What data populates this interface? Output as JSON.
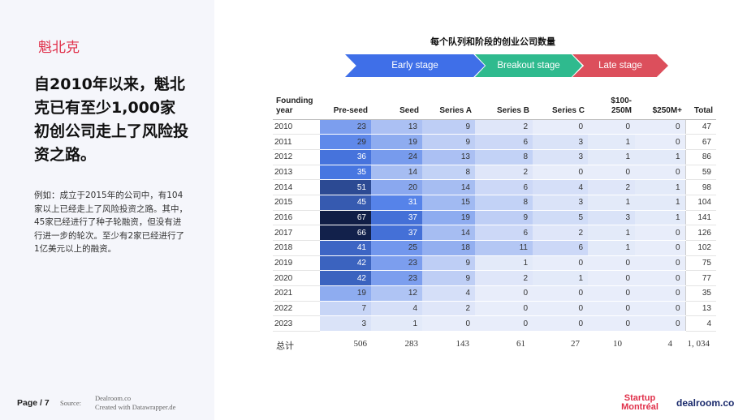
{
  "brand": "魁北克",
  "headline": "自2010年以来，魁北克已有至少1,000家初创公司走上了风险投资之路。",
  "body_text": "例如：成立于2015年的公司中，有104家以上已经走上了风险投资之路。其中，45家已经进行了种子轮融资，但没有进行进一步的轮次。至少有2家已经进行了1亿美元以上的融资。",
  "chart_title": "每个队列和阶段的创业公司数量",
  "stages": {
    "early": "Early stage",
    "breakout": "Breakout stage",
    "late": "Late stage",
    "colors": {
      "early": "#3f6fe8",
      "breakout": "#2fba8e",
      "late": "#dc4f5c"
    }
  },
  "table": {
    "headers": {
      "year": "Founding year",
      "pre_seed": "Pre-seed",
      "seed": "Seed",
      "series_a": "Series A",
      "series_b": "Series B",
      "series_c": "Series C",
      "m100": "$100-250M",
      "m250": "$250M+",
      "total": "Total"
    },
    "rows": [
      [
        "2010",
        23,
        13,
        9,
        2,
        0,
        0,
        0,
        47
      ],
      [
        "2011",
        29,
        19,
        9,
        6,
        3,
        1,
        0,
        67
      ],
      [
        "2012",
        36,
        24,
        13,
        8,
        3,
        1,
        1,
        86
      ],
      [
        "2013",
        35,
        14,
        8,
        2,
        0,
        0,
        0,
        59
      ],
      [
        "2014",
        51,
        20,
        14,
        6,
        4,
        2,
        1,
        98
      ],
      [
        "2015",
        45,
        31,
        15,
        8,
        3,
        1,
        1,
        104
      ],
      [
        "2016",
        67,
        37,
        19,
        9,
        5,
        3,
        1,
        141
      ],
      [
        "2017",
        66,
        37,
        14,
        6,
        2,
        1,
        0,
        126
      ],
      [
        "2018",
        41,
        25,
        18,
        11,
        6,
        1,
        0,
        102
      ],
      [
        "2019",
        42,
        23,
        9,
        1,
        0,
        0,
        0,
        75
      ],
      [
        "2020",
        42,
        23,
        9,
        2,
        1,
        0,
        0,
        77
      ],
      [
        "2021",
        19,
        12,
        4,
        0,
        0,
        0,
        0,
        35
      ],
      [
        "2022",
        7,
        4,
        2,
        0,
        0,
        0,
        0,
        13
      ],
      [
        "2023",
        3,
        1,
        0,
        0,
        0,
        0,
        0,
        4
      ]
    ],
    "totals": {
      "label": "总计",
      "values": [
        "506",
        "283",
        "143",
        "61",
        "27",
        "10",
        "4",
        "1, 034"
      ]
    }
  },
  "footer": {
    "page": "Page / 7",
    "source_label": "Source:",
    "source_line1": "Dealroom.co",
    "source_line2": "Created with Datawrapper.de",
    "logo_startup_line1": "Startup",
    "logo_startup_line2": "Montréal",
    "logo_dealroom": "dealroom.co"
  }
}
